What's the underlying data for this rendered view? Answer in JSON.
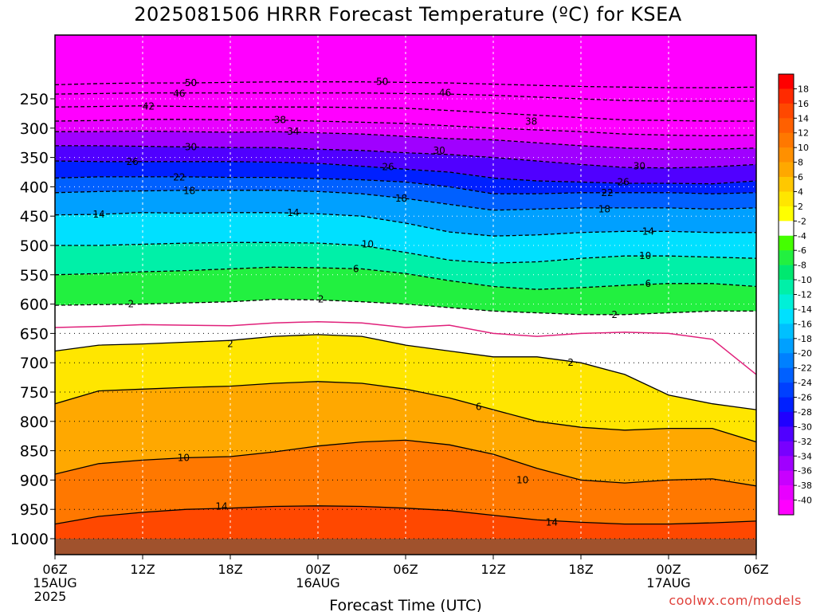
{
  "title": "2025081506 HRRR Forecast Temperature (ºC) for KSEA",
  "credit": "coolwx.com/models",
  "chart_data": {
    "type": "heatmap",
    "title": "2025081506 HRRR Forecast Temperature (ºC) for KSEA",
    "xlabel": "Forecast Time (UTC)",
    "ylabel": "",
    "x_range_hours": [
      0,
      48
    ],
    "y_range_hPa": [
      1000,
      200
    ],
    "y_ticks": [
      250,
      300,
      350,
      400,
      450,
      500,
      550,
      600,
      650,
      700,
      750,
      800,
      850,
      900,
      950,
      1000
    ],
    "x_ticks": [
      {
        "hour": 0,
        "label": "06Z",
        "sub": [
          "15AUG",
          "2025"
        ]
      },
      {
        "hour": 6,
        "label": "12Z",
        "sub": []
      },
      {
        "hour": 12,
        "label": "18Z",
        "sub": []
      },
      {
        "hour": 18,
        "label": "00Z",
        "sub": [
          "16AUG"
        ]
      },
      {
        "hour": 24,
        "label": "06Z",
        "sub": []
      },
      {
        "hour": 30,
        "label": "12Z",
        "sub": []
      },
      {
        "hour": 36,
        "label": "18Z",
        "sub": []
      },
      {
        "hour": 42,
        "label": "00Z",
        "sub": [
          "17AUG"
        ]
      },
      {
        "hour": 48,
        "label": "06Z",
        "sub": []
      }
    ],
    "colorbar": {
      "labels": [
        "18",
        "16",
        "14",
        "12",
        "10",
        "8",
        "6",
        "4",
        "2",
        "-2",
        "-4",
        "-6",
        "-8",
        "-10",
        "-12",
        "-14",
        "-16",
        "-18",
        "-20",
        "-22",
        "-24",
        "-26",
        "-28",
        "-30",
        "-32",
        "-34",
        "-36",
        "-38",
        "-40"
      ],
      "colors": [
        "#ff0000",
        "#ff2a00",
        "#ff4800",
        "#ff6000",
        "#ff7800",
        "#ff9000",
        "#ffa800",
        "#ffc800",
        "#ffe600",
        "#ffff00",
        "#ffffff",
        "#44ff00",
        "#22f040",
        "#00e870",
        "#00f0a8",
        "#00f0d8",
        "#00e0ff",
        "#00c0ff",
        "#00a0ff",
        "#0080ff",
        "#0060ff",
        "#0040ff",
        "#0020ff",
        "#2000ff",
        "#5000ff",
        "#7800ff",
        "#a000ff",
        "#c800ff",
        "#e800ff",
        "#ff00ff"
      ]
    },
    "isotherms": [
      {
        "value": 14,
        "label": "14",
        "pressures": [
          975,
          962,
          955,
          950,
          948,
          945,
          944,
          945,
          948,
          952,
          960,
          968,
          972,
          975,
          975,
          973,
          970
        ]
      },
      {
        "value": 10,
        "label": "10",
        "pressures": [
          890,
          872,
          866,
          862,
          860,
          852,
          842,
          835,
          832,
          840,
          856,
          880,
          900,
          905,
          900,
          898,
          910
        ]
      },
      {
        "value": 6,
        "label": "6",
        "pressures": [
          770,
          748,
          745,
          742,
          740,
          735,
          732,
          735,
          745,
          760,
          780,
          800,
          810,
          815,
          812,
          812,
          835
        ]
      },
      {
        "value": 2,
        "label": "2",
        "pressures": [
          680,
          670,
          668,
          665,
          662,
          655,
          652,
          655,
          670,
          680,
          690,
          690,
          700,
          720,
          755,
          770,
          780
        ]
      },
      {
        "value": 0,
        "label": "",
        "pressures": [
          640,
          638,
          635,
          636,
          637,
          632,
          630,
          632,
          640,
          636,
          650,
          655,
          650,
          648,
          650,
          660,
          720
        ]
      },
      {
        "value": -2,
        "label": "2",
        "pressures": [
          602,
          601,
          600,
          598,
          596,
          592,
          593,
          596,
          600,
          606,
          612,
          615,
          618,
          618,
          615,
          612,
          612
        ]
      },
      {
        "value": -6,
        "label": "6",
        "pressures": [
          550,
          548,
          545,
          543,
          540,
          537,
          538,
          540,
          548,
          560,
          570,
          575,
          572,
          568,
          565,
          565,
          570
        ]
      },
      {
        "value": -10,
        "label": "10",
        "pressures": [
          500,
          500,
          498,
          496,
          495,
          495,
          496,
          500,
          512,
          525,
          530,
          528,
          522,
          518,
          518,
          520,
          522
        ]
      },
      {
        "value": -14,
        "label": "14",
        "pressures": [
          448,
          447,
          444,
          445,
          444,
          444,
          446,
          450,
          462,
          477,
          484,
          482,
          478,
          476,
          476,
          478,
          478
        ]
      },
      {
        "value": -18,
        "label": "18",
        "pressures": [
          410,
          408,
          407,
          406,
          406,
          406,
          408,
          412,
          420,
          430,
          440,
          438,
          436,
          436,
          436,
          438,
          436
        ]
      },
      {
        "value": -22,
        "label": "22",
        "pressures": [
          385,
          383,
          383,
          383,
          384,
          384,
          386,
          388,
          392,
          400,
          412,
          412,
          410,
          410,
          410,
          412,
          410
        ]
      },
      {
        "value": -26,
        "label": "26",
        "pressures": [
          356,
          357,
          357,
          357,
          357,
          358,
          360,
          365,
          370,
          375,
          385,
          390,
          392,
          394,
          394,
          395,
          390
        ]
      },
      {
        "value": -30,
        "label": "30",
        "pressures": [
          330,
          330,
          331,
          332,
          333,
          333,
          336,
          338,
          342,
          345,
          350,
          356,
          362,
          367,
          368,
          366,
          362
        ]
      },
      {
        "value": -34,
        "label": "34",
        "pressures": [
          306,
          306,
          305,
          306,
          307,
          306,
          308,
          310,
          314,
          318,
          320,
          325,
          330,
          334,
          336,
          336,
          334
        ]
      },
      {
        "value": -38,
        "label": "38",
        "pressures": [
          288,
          287,
          285,
          285,
          286,
          286,
          288,
          290,
          292,
          296,
          300,
          303,
          306,
          310,
          312,
          313,
          312
        ]
      },
      {
        "value": -42,
        "label": "42",
        "pressures": [
          264,
          263,
          262,
          263,
          264,
          264,
          264,
          265,
          266,
          270,
          274,
          278,
          282,
          286,
          287,
          288,
          288
        ]
      },
      {
        "value": -46,
        "label": "46",
        "pressures": [
          242,
          241,
          240,
          240,
          240,
          240,
          240,
          240,
          241,
          242,
          244,
          247,
          250,
          253,
          254,
          254,
          254
        ]
      },
      {
        "value": -50,
        "label": "50",
        "pressures": [
          226,
          224,
          223,
          223,
          222,
          221,
          221,
          221,
          222,
          223,
          225,
          227,
          229,
          230,
          231,
          231,
          230
        ]
      }
    ],
    "contour_label_positions": [
      {
        "text": "50",
        "hour": 9.3,
        "p": 223
      },
      {
        "text": "50",
        "hour": 22.4,
        "p": 221
      },
      {
        "text": "46",
        "hour": 8.5,
        "p": 241
      },
      {
        "text": "46",
        "hour": 26.7,
        "p": 240
      },
      {
        "text": "42",
        "hour": 6.4,
        "p": 263
      },
      {
        "text": "38",
        "hour": 15.4,
        "p": 286
      },
      {
        "text": "38",
        "hour": 32.6,
        "p": 289
      },
      {
        "text": "34",
        "hour": 16.3,
        "p": 306
      },
      {
        "text": "30",
        "hour": 9.3,
        "p": 332
      },
      {
        "text": "30",
        "hour": 26.3,
        "p": 338
      },
      {
        "text": "30",
        "hour": 40.0,
        "p": 365
      },
      {
        "text": "26",
        "hour": 5.3,
        "p": 357
      },
      {
        "text": "26",
        "hour": 22.8,
        "p": 366
      },
      {
        "text": "26",
        "hour": 38.9,
        "p": 392
      },
      {
        "text": "22",
        "hour": 8.5,
        "p": 384
      },
      {
        "text": "22",
        "hour": 37.8,
        "p": 410
      },
      {
        "text": "18",
        "hour": 9.2,
        "p": 407
      },
      {
        "text": "18",
        "hour": 23.7,
        "p": 420
      },
      {
        "text": "18",
        "hour": 37.6,
        "p": 438
      },
      {
        "text": "14",
        "hour": 3.0,
        "p": 447
      },
      {
        "text": "14",
        "hour": 16.3,
        "p": 444
      },
      {
        "text": "14",
        "hour": 40.6,
        "p": 476
      },
      {
        "text": "10",
        "hour": 21.4,
        "p": 498
      },
      {
        "text": "10",
        "hour": 40.4,
        "p": 518
      },
      {
        "text": "6",
        "hour": 20.6,
        "p": 540
      },
      {
        "text": "6",
        "hour": 40.6,
        "p": 565
      },
      {
        "text": "2",
        "hour": 5.2,
        "p": 600
      },
      {
        "text": "2",
        "hour": 18.2,
        "p": 592
      },
      {
        "text": "2",
        "hour": 38.3,
        "p": 618
      },
      {
        "text": "2",
        "hour": 12.0,
        "p": 668
      },
      {
        "text": "2",
        "hour": 35.3,
        "p": 700
      },
      {
        "text": "6",
        "hour": 29.0,
        "p": 775
      },
      {
        "text": "10",
        "hour": 8.8,
        "p": 862
      },
      {
        "text": "10",
        "hour": 32.0,
        "p": 900
      },
      {
        "text": "14",
        "hour": 11.4,
        "p": 945
      },
      {
        "text": "14",
        "hour": 34.0,
        "p": 972
      }
    ]
  }
}
